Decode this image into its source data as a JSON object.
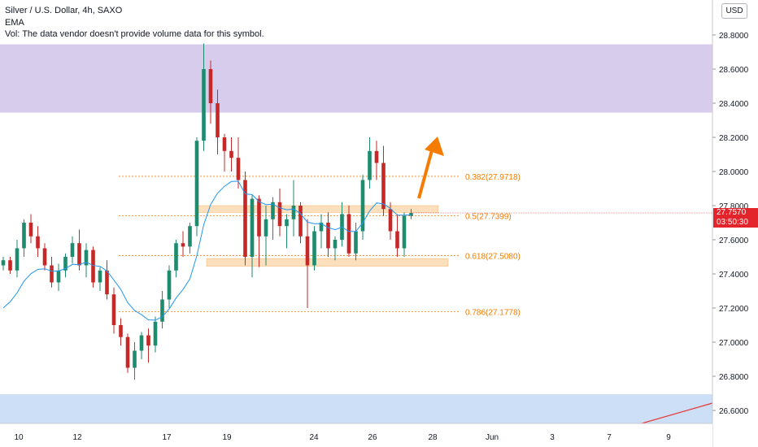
{
  "legend": {
    "title": "Silver / U.S. Dollar, 4h, SAXO",
    "indicator": "EMA",
    "volume_note": "Vol: The data vendor doesn't provide volume data for this symbol."
  },
  "currency_button": "USD",
  "current_price": {
    "value": "27.7570",
    "countdown": "03:50:30"
  },
  "colors": {
    "up": "#26a69a",
    "down": "#ef5350",
    "candle_body_up": "#1e8a6e",
    "candle_body_down": "#c62828",
    "ema": "#2196f3",
    "fib": "#f57c00",
    "supply_zone": "#d4c6ea",
    "demand_zone": "#c8dcf5",
    "sr_band": "#fcd9b0",
    "arrow": "#f57c00",
    "trend_line": "#e53935"
  },
  "chart_data": {
    "type": "candlestick",
    "symbol": "Silver / U.S. Dollar",
    "timeframe": "4h",
    "yaxis": {
      "ticks": [
        "28.8000",
        "28.6000",
        "28.4000",
        "28.2000",
        "28.0000",
        "27.8000",
        "27.6000",
        "27.4000",
        "27.2000",
        "27.0000",
        "26.8000",
        "26.6000"
      ],
      "range": [
        26.52,
        28.92
      ]
    },
    "xaxis": {
      "ticks": [
        "10",
        "12",
        "17",
        "19",
        "24",
        "26",
        "28",
        "Jun",
        "3",
        "7",
        "9"
      ]
    },
    "fib_levels": [
      {
        "label": "0.382(27.9718)",
        "value": 27.9718
      },
      {
        "label": "0.5(27.7399)",
        "value": 27.7399
      },
      {
        "label": "0.618(27.5080)",
        "value": 27.508
      },
      {
        "label": "0.786(27.1778)",
        "value": 27.1778
      }
    ],
    "zones": [
      {
        "kind": "supply",
        "from": 28.345,
        "to": 28.745
      },
      {
        "kind": "demand",
        "from": 26.5,
        "to": 26.695
      }
    ],
    "candles": [
      [
        27.45,
        27.5,
        27.42,
        27.48
      ],
      [
        27.48,
        27.5,
        27.4,
        27.42
      ],
      [
        27.42,
        27.6,
        27.38,
        27.55
      ],
      [
        27.55,
        27.72,
        27.5,
        27.7
      ],
      [
        27.7,
        27.75,
        27.58,
        27.62
      ],
      [
        27.62,
        27.68,
        27.5,
        27.55
      ],
      [
        27.55,
        27.58,
        27.42,
        27.45
      ],
      [
        27.45,
        27.5,
        27.32,
        27.35
      ],
      [
        27.35,
        27.46,
        27.3,
        27.42
      ],
      [
        27.42,
        27.52,
        27.38,
        27.5
      ],
      [
        27.5,
        27.62,
        27.46,
        27.58
      ],
      [
        27.58,
        27.66,
        27.42,
        27.45
      ],
      [
        27.45,
        27.58,
        27.38,
        27.54
      ],
      [
        27.54,
        27.56,
        27.32,
        27.35
      ],
      [
        27.35,
        27.44,
        27.3,
        27.42
      ],
      [
        27.42,
        27.48,
        27.25,
        27.28
      ],
      [
        27.28,
        27.32,
        27.05,
        27.1
      ],
      [
        27.1,
        27.14,
        26.98,
        27.03
      ],
      [
        27.03,
        27.05,
        26.82,
        26.85
      ],
      [
        26.85,
        27.0,
        26.78,
        26.95
      ],
      [
        26.95,
        27.06,
        26.9,
        27.04
      ],
      [
        27.04,
        27.08,
        26.88,
        26.98
      ],
      [
        26.98,
        27.15,
        26.94,
        27.12
      ],
      [
        27.12,
        27.3,
        27.08,
        27.25
      ],
      [
        27.25,
        27.45,
        27.2,
        27.42
      ],
      [
        27.42,
        27.6,
        27.38,
        27.58
      ],
      [
        27.58,
        27.65,
        27.5,
        27.56
      ],
      [
        27.56,
        27.7,
        27.52,
        27.68
      ],
      [
        27.68,
        28.2,
        27.62,
        28.18
      ],
      [
        28.18,
        28.75,
        28.12,
        28.6
      ],
      [
        28.6,
        28.65,
        28.28,
        28.4
      ],
      [
        28.4,
        28.48,
        28.1,
        28.2
      ],
      [
        28.2,
        28.22,
        28.0,
        28.12
      ],
      [
        28.12,
        28.2,
        28.0,
        28.08
      ],
      [
        28.08,
        28.2,
        27.9,
        27.95
      ],
      [
        27.95,
        28.0,
        27.45,
        27.5
      ],
      [
        27.5,
        27.86,
        27.38,
        27.84
      ],
      [
        27.84,
        27.86,
        27.44,
        27.62
      ],
      [
        27.62,
        27.8,
        27.45,
        27.72
      ],
      [
        27.72,
        27.85,
        27.6,
        27.82
      ],
      [
        27.82,
        27.9,
        27.62,
        27.68
      ],
      [
        27.68,
        27.75,
        27.55,
        27.72
      ],
      [
        27.72,
        27.95,
        27.62,
        27.8
      ],
      [
        27.8,
        27.82,
        27.58,
        27.62
      ],
      [
        27.62,
        27.72,
        27.2,
        27.45
      ],
      [
        27.45,
        27.68,
        27.42,
        27.65
      ],
      [
        27.65,
        27.75,
        27.55,
        27.7
      ],
      [
        27.7,
        27.76,
        27.5,
        27.55
      ],
      [
        27.55,
        27.62,
        27.48,
        27.6
      ],
      [
        27.6,
        27.82,
        27.56,
        27.75
      ],
      [
        27.75,
        27.8,
        27.5,
        27.52
      ],
      [
        27.52,
        27.7,
        27.48,
        27.65
      ],
      [
        27.65,
        27.98,
        27.6,
        27.95
      ],
      [
        27.95,
        28.2,
        27.9,
        28.12
      ],
      [
        28.12,
        28.18,
        27.95,
        28.05
      ],
      [
        28.05,
        28.15,
        27.74,
        27.78
      ],
      [
        27.78,
        27.82,
        27.6,
        27.65
      ],
      [
        27.65,
        27.75,
        27.5,
        27.55
      ],
      [
        27.55,
        27.76,
        27.5,
        27.74
      ],
      [
        27.74,
        27.78,
        27.72,
        27.757
      ]
    ]
  }
}
